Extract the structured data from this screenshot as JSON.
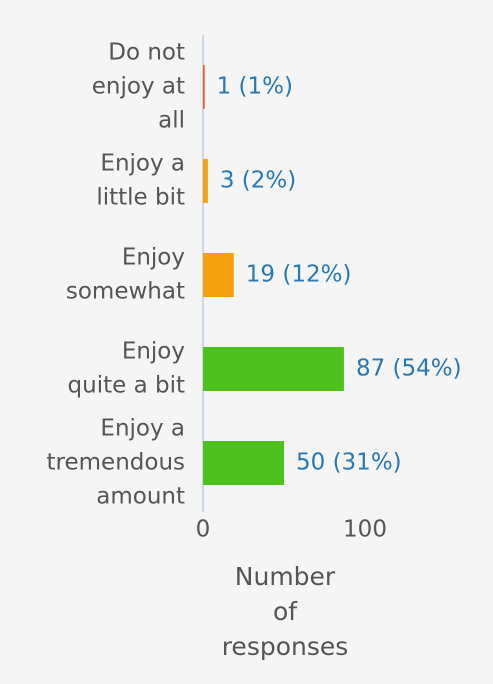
{
  "chart_data": {
    "type": "hbar",
    "categories": [
      [
        "Do not",
        "enjoy at",
        "all"
      ],
      [
        "Enjoy a",
        "little bit"
      ],
      [
        "Enjoy",
        "somewhat"
      ],
      [
        "Enjoy",
        "quite a bit"
      ],
      [
        "Enjoy a",
        "tremendous",
        "amount"
      ]
    ],
    "values": [
      1,
      3,
      19,
      87,
      50
    ],
    "value_labels": [
      "1 (1%)",
      "3 (2%)",
      "19 (12%)",
      "87 (54%)",
      "50 (31%)"
    ],
    "colors": [
      "#e8582a",
      "#f5a10f",
      "#f5a10f",
      "#4fc11f",
      "#4fc11f"
    ],
    "xlim": [
      0,
      150
    ],
    "xticks": [
      0,
      100
    ],
    "x_label": [
      "Number",
      "of",
      "responses"
    ]
  }
}
